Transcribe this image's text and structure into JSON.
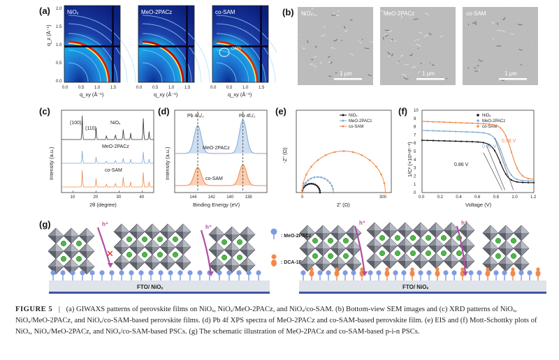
{
  "panels": {
    "a": {
      "letter": "(a)",
      "ylabel": "q_z (Å⁻¹)",
      "xlabel": "q_xy (Å⁻¹)",
      "yticks": [
        "2.0",
        "1.5",
        "1.0",
        "0.5",
        "0.0"
      ],
      "xticks": [
        "0.0",
        "0.5",
        "1.0",
        "1.5"
      ],
      "subpanels": [
        {
          "title": "NiOₓ"
        },
        {
          "title": "MeO-2PACz"
        },
        {
          "title": "co-SAM",
          "annotation": "(100)"
        }
      ]
    },
    "b": {
      "letter": "(b)",
      "images": [
        {
          "title": "NiOₓ",
          "scale": "1 μm"
        },
        {
          "title": "MeO-2PACz",
          "scale": "1 μm"
        },
        {
          "title": "co-SAM",
          "scale": "1 μm"
        }
      ]
    },
    "c": {
      "letter": "(c)",
      "ylabel": "Intensity (a.u.)",
      "xlabel": "2θ (degree)",
      "xticks": [
        "10",
        "20",
        "30",
        "40"
      ],
      "peak_labels": [
        "(100)",
        "(110)"
      ],
      "traces": [
        {
          "name": "NiOₓ",
          "color": "#333333"
        },
        {
          "name": "MeO-2PACz",
          "color": "#7ea9d6"
        },
        {
          "name": "co-SAM",
          "color": "#f08a4b"
        }
      ]
    },
    "d": {
      "letter": "(d)",
      "ylabel": "Intensity (a.u.)",
      "xlabel": "Binding Energy (eV)",
      "xticks": [
        "144",
        "142",
        "140",
        "138"
      ],
      "peak_labels": [
        "Pb 4f₅/₂",
        "Pb 4f₇/₂"
      ],
      "traces": [
        {
          "name": "MeO-2PACz",
          "color": "#7ea9d6"
        },
        {
          "name": "co-SAM",
          "color": "#f08a4b"
        }
      ]
    },
    "e": {
      "letter": "(e)",
      "ylabel": "-Z'' (Ω)",
      "xlabel": "Z' (Ω)",
      "xticks": [
        "0",
        "300"
      ],
      "legend": [
        {
          "name": "NiOₓ",
          "color": "#111111"
        },
        {
          "name": "MeO-2PACz",
          "color": "#7ea9d6"
        },
        {
          "name": "co-SAM",
          "color": "#f08a4b"
        }
      ]
    },
    "f": {
      "letter": "(f)",
      "ylabel": "1/C² (×10¹⁶F⁻²)",
      "xlabel": "Voltage (V)",
      "xticks": [
        "0.0",
        "0.2",
        "0.4",
        "0.6",
        "0.8",
        "1.0",
        "1.2"
      ],
      "yticks": [
        "10",
        "9",
        "8",
        "7",
        "6",
        "5",
        "4",
        "3",
        "2",
        "1",
        "0"
      ],
      "legend": [
        {
          "name": "NiOₓ",
          "color": "#111111"
        },
        {
          "name": "MeO-2PACz",
          "color": "#7ea9d6"
        },
        {
          "name": "co-SAM",
          "color": "#f08a4b"
        }
      ],
      "annotations": [
        "0.86 V",
        "0.89 V",
        "0.98 V"
      ]
    },
    "g": {
      "letter": "(g)",
      "hole_label": "h⁺",
      "legend": [
        {
          "name": ": MeO-2PACz",
          "color": "#7f9be0"
        },
        {
          "name": ": DCA-1F",
          "color": "#f08a4b"
        }
      ],
      "substrate_left": "FTO/ NiOₓ",
      "substrate_right": "FTO/ NiOₓ"
    }
  },
  "caption": {
    "figure_label": "FIGURE 5",
    "separator": "|",
    "text": "(a) GIWAXS patterns of perovskite films on NiOₓ, NiOₓ/MeO-2PACz, and NiOₓ/co-SAM. (b) Bottom-view SEM images and (c) XRD patterns of NiOₓ, NiOₓ/MeO-2PACz, and NiOₓ/co-SAM-based perovskite films. (d) Pb 4f XPS spectra of MeO-2PACz and co-SAM-based perovskite film. (e) EIS and (f) Mott-Schottky plots of NiOₓ, NiOₓ/MeO-2PACz, and NiOₓ/co-SAM-based PSCs. (g) The schematic illustration of MeO-2PACz and co-SAM-based p-i-n PSCs."
  },
  "chart_data": [
    {
      "type": "line",
      "title": "XRD",
      "xlabel": "2θ (degree)",
      "ylabel": "Intensity (a.u.)",
      "xlim": [
        5,
        45
      ],
      "series": [
        {
          "name": "NiOₓ",
          "peaks_2theta": [
            14.0,
            20.0,
            24.5,
            28.4,
            31.8,
            35.0,
            40.5,
            43.0
          ]
        },
        {
          "name": "MeO-2PACz",
          "peaks_2theta": [
            14.0,
            20.0,
            24.5,
            28.4,
            31.8,
            35.0,
            40.5,
            43.0
          ]
        },
        {
          "name": "co-SAM",
          "peaks_2theta": [
            14.0,
            20.0,
            24.5,
            28.4,
            31.8,
            35.0,
            40.5,
            43.0
          ]
        }
      ]
    },
    {
      "type": "line",
      "title": "Pb 4f XPS",
      "xlabel": "Binding Energy (eV)",
      "ylabel": "Intensity (a.u.)",
      "xlim": [
        146,
        136
      ],
      "series": [
        {
          "name": "MeO-2PACz",
          "peaks_eV": [
            143.5,
            138.6
          ]
        },
        {
          "name": "co-SAM",
          "peaks_eV": [
            143.5,
            138.6
          ]
        }
      ]
    },
    {
      "type": "line",
      "title": "EIS",
      "xlabel": "Z' (Ω)",
      "ylabel": "-Z'' (Ω)",
      "xlim": [
        0,
        320
      ],
      "series": [
        {
          "name": "NiOₓ",
          "semicircle": {
            "start": 20,
            "end": 80
          }
        },
        {
          "name": "MeO-2PACz",
          "semicircle": {
            "start": 20,
            "end": 125
          }
        },
        {
          "name": "co-SAM",
          "semicircle": {
            "start": 20,
            "end": 300
          }
        }
      ]
    },
    {
      "type": "line",
      "title": "Mott-Schottky",
      "xlabel": "Voltage (V)",
      "ylabel": "1/C² (×10¹⁶F⁻²)",
      "xlim": [
        0,
        1.2
      ],
      "ylim": [
        0,
        10
      ],
      "series": [
        {
          "name": "NiOₓ",
          "plateau": 6.2,
          "vbi": 0.86
        },
        {
          "name": "MeO-2PACz",
          "plateau": 7.4,
          "vbi": 0.89
        },
        {
          "name": "co-SAM",
          "plateau": 8.5,
          "vbi": 0.98
        }
      ]
    }
  ]
}
